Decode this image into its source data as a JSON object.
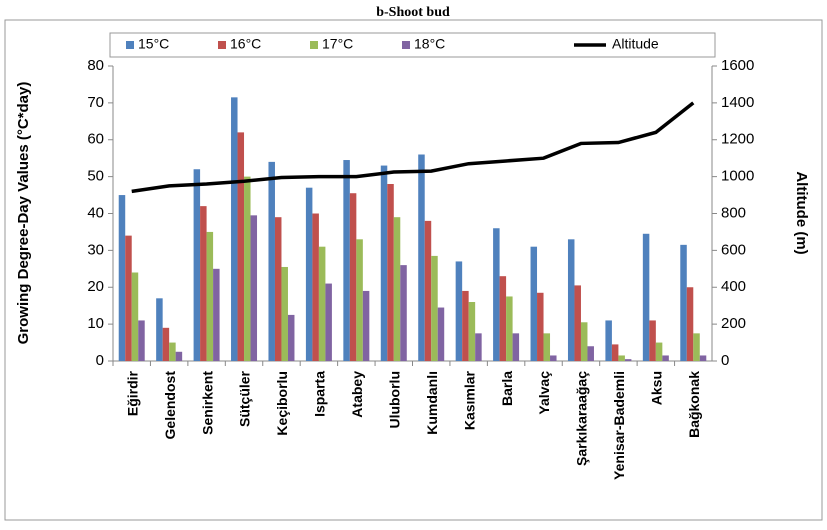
{
  "chart_data": {
    "type": "bar",
    "title": "b-Shoot bud",
    "categories": [
      "Eğirdir",
      "Gelendost",
      "Senirkent",
      "Sütçüler",
      "Keçiborlu",
      "Isparta",
      "Atabey",
      "Uluborlu",
      "Kumdanlı",
      "Kasımlar",
      "Barla",
      "Yalvaç",
      "Şarkıkaraağaç",
      "Yenisar-Bademli",
      "Aksu",
      "Bağkonak"
    ],
    "series": [
      {
        "name": "15°C",
        "color": "#4f81bd",
        "values": [
          45,
          17,
          52,
          71.5,
          54,
          47,
          54.5,
          53,
          56,
          27,
          36,
          31,
          33,
          11,
          34.5,
          31.5
        ]
      },
      {
        "name": "16°C",
        "color": "#c0504d",
        "values": [
          34,
          9,
          42,
          62,
          39,
          40,
          45.5,
          48,
          38,
          19,
          23,
          18.5,
          20.5,
          4.5,
          11,
          20
        ]
      },
      {
        "name": "17°C",
        "color": "#9bbb59",
        "values": [
          24,
          5,
          35,
          50,
          25.5,
          31,
          33,
          39,
          28.5,
          16,
          17.5,
          7.5,
          10.5,
          1.5,
          5,
          7.5
        ]
      },
      {
        "name": "18°C",
        "color": "#8064a2",
        "values": [
          11,
          2.5,
          25,
          39.5,
          12.5,
          21,
          19,
          26,
          14.5,
          7.5,
          7.5,
          1.5,
          4,
          0.5,
          1.5,
          1.5
        ]
      },
      {
        "name": "Altitude",
        "color": "#000000",
        "type": "line",
        "axis": "y2",
        "values": [
          920,
          950,
          960,
          975,
          995,
          1000,
          1000,
          1025,
          1030,
          1070,
          1085,
          1100,
          1180,
          1185,
          1240,
          1400
        ]
      }
    ],
    "ylabel": "Growing Degree-Day Values (°C*day)",
    "y2label": "Altitude (m)",
    "ylim": [
      0,
      80
    ],
    "yticks": [
      0,
      10,
      20,
      30,
      40,
      50,
      60,
      70,
      80
    ],
    "y2lim": [
      0,
      1600
    ],
    "y2ticks": [
      0,
      200,
      400,
      600,
      800,
      1000,
      1200,
      1400,
      1600
    ],
    "grid": false,
    "legend": "top"
  }
}
